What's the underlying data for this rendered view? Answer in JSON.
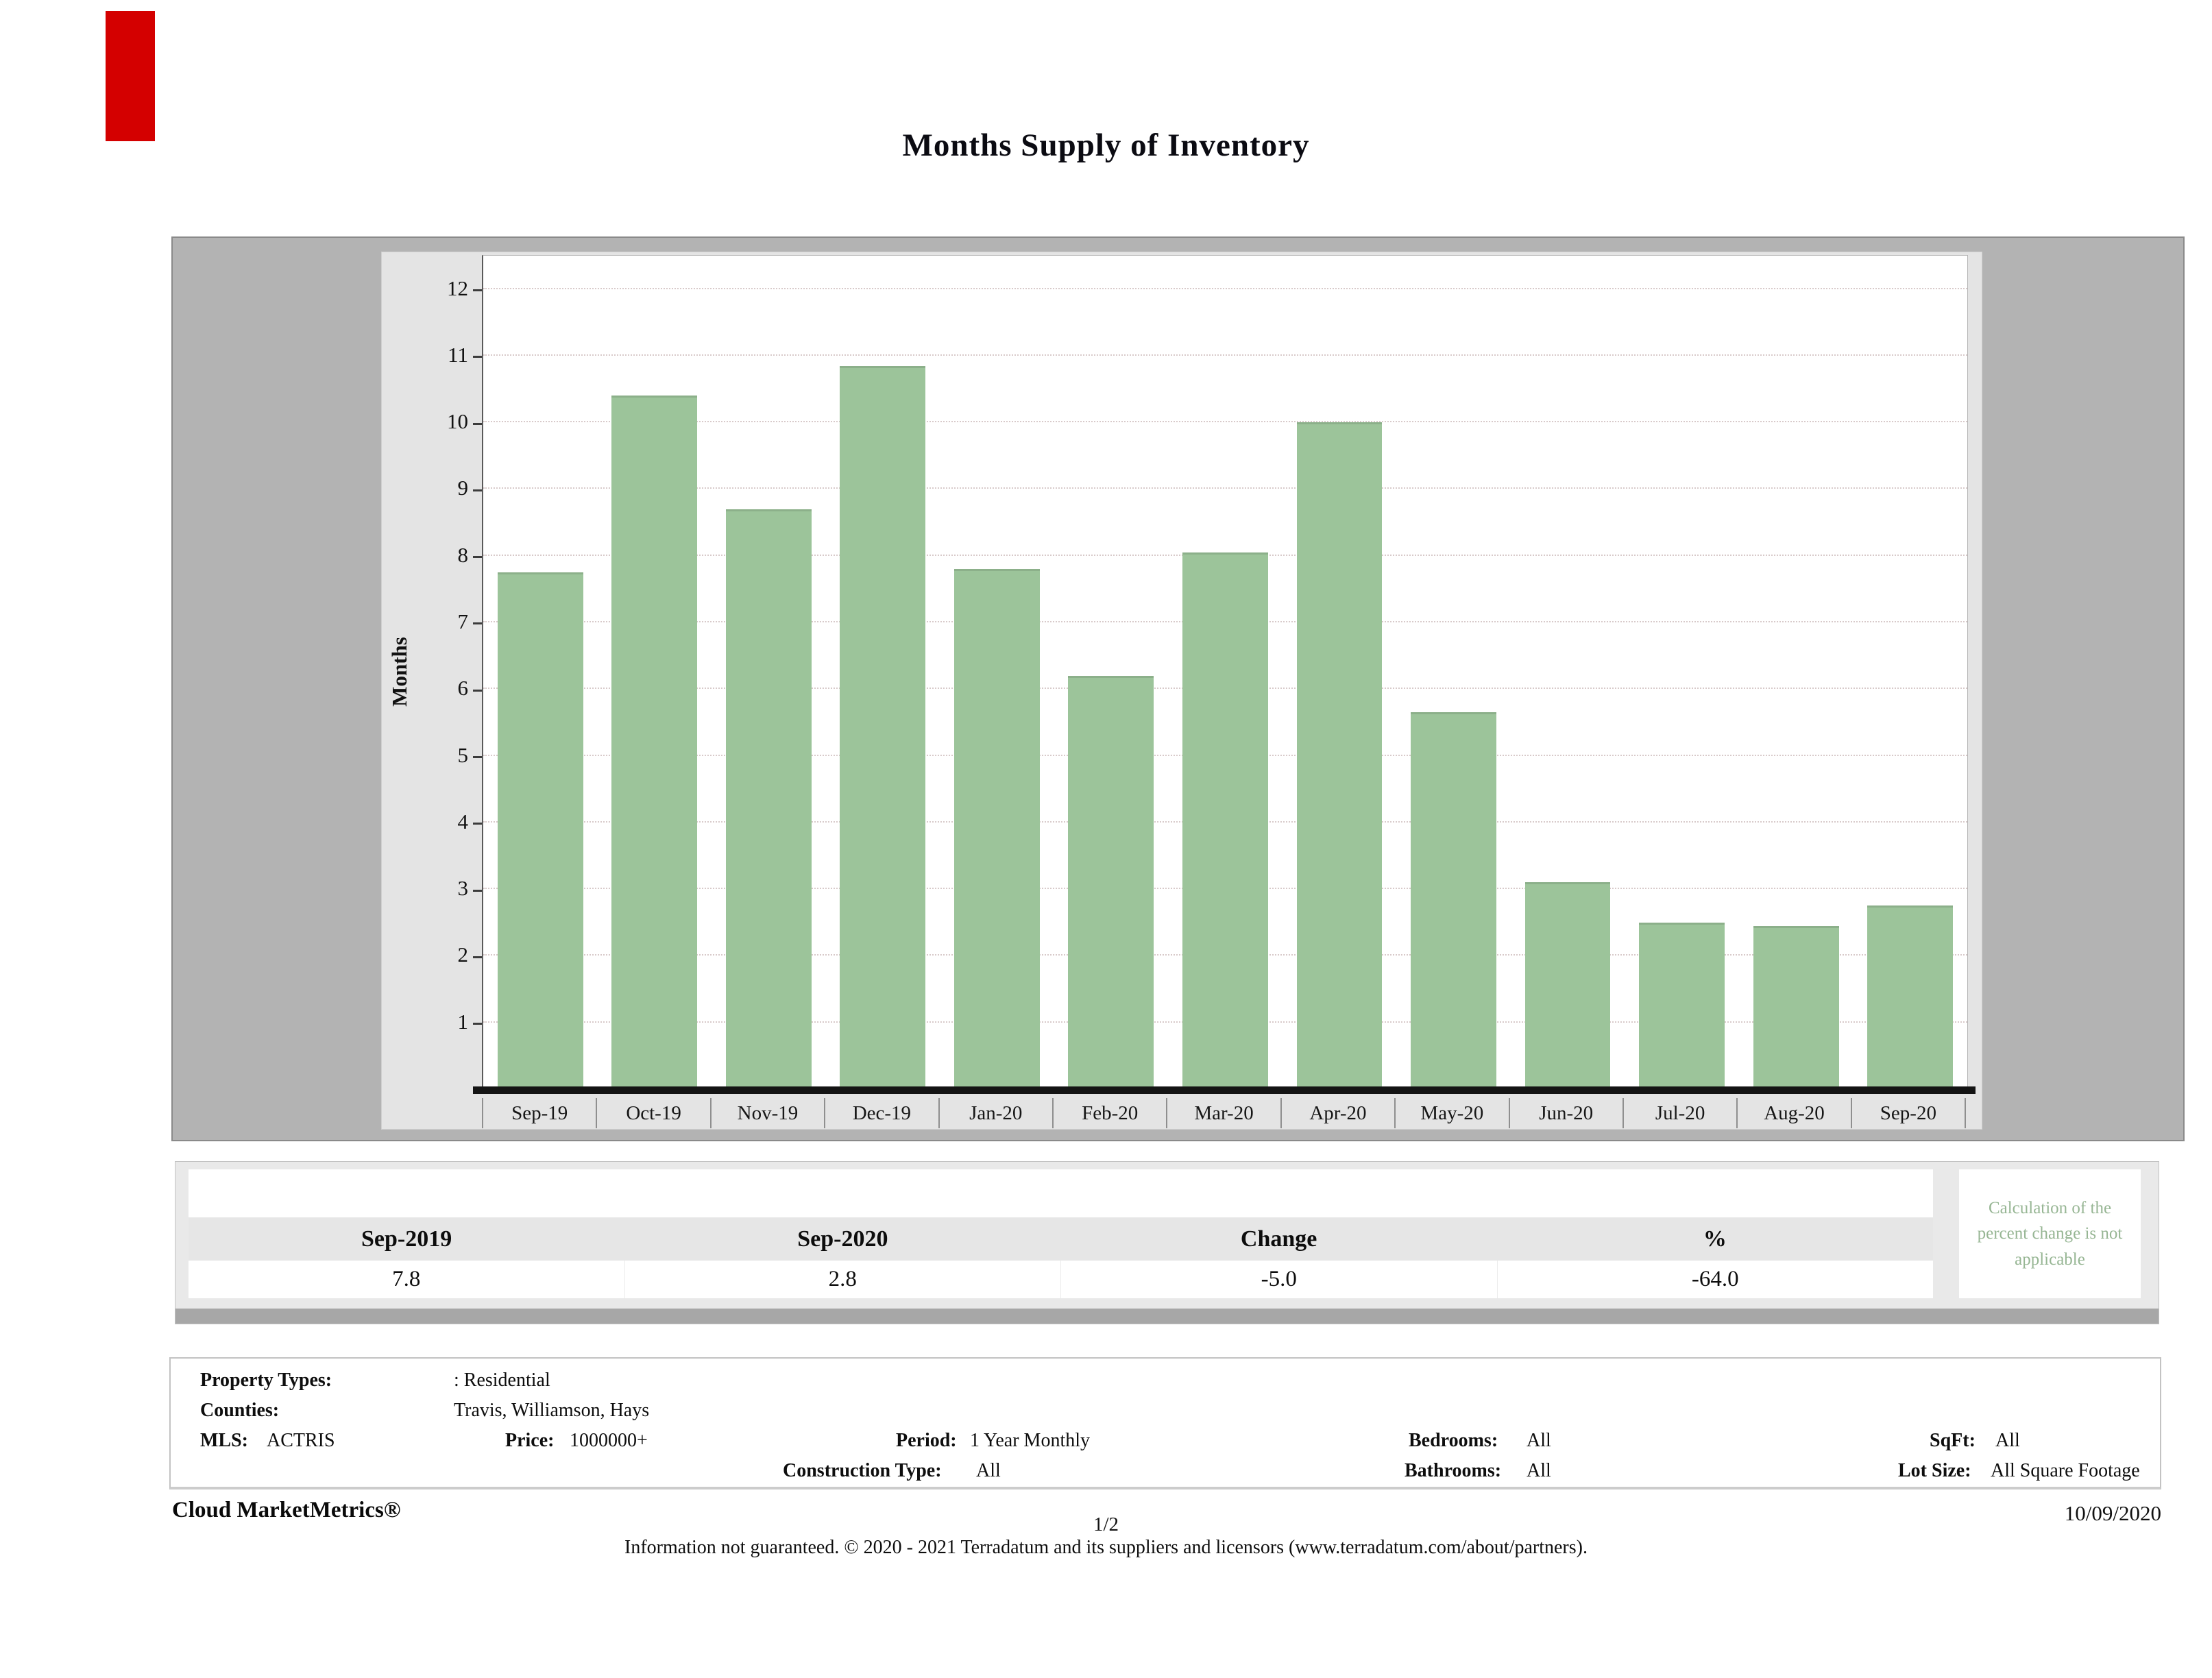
{
  "page": {
    "title": "Months Supply of Inventory",
    "brand": "Cloud MarketMetrics®",
    "page_number": "1/2",
    "date": "10/09/2020",
    "disclaimer": "Information not guaranteed. © 2020 - 2021 Terradatum and its suppliers and licensors (www.terradatum.com/about/partners)."
  },
  "chart_data": {
    "type": "bar",
    "title": "Months Supply of Inventory",
    "xlabel": "",
    "ylabel": "Months",
    "categories": [
      "Sep-19",
      "Oct-19",
      "Nov-19",
      "Dec-19",
      "Jan-20",
      "Feb-20",
      "Mar-20",
      "Apr-20",
      "May-20",
      "Jun-20",
      "Jul-20",
      "Aug-20",
      "Sep-20"
    ],
    "values": [
      7.75,
      10.4,
      8.7,
      10.85,
      7.8,
      6.2,
      8.05,
      10.0,
      5.65,
      3.1,
      2.5,
      2.45,
      2.75
    ],
    "ylim": [
      0,
      12.5
    ],
    "yticks": [
      1,
      2,
      3,
      4,
      5,
      6,
      7,
      8,
      9,
      10,
      11,
      12
    ],
    "grid": "horizontal-dotted",
    "legend": "none",
    "bar_color": "#9cc49a"
  },
  "summary_table": {
    "columns": [
      "Sep-2019",
      "Sep-2020",
      "Change",
      "%"
    ],
    "values": [
      "7.8",
      "2.8",
      "-5.0",
      "-64.0"
    ]
  },
  "note": {
    "text": "Calculation of the percent change is not applicable",
    "color": "#97b694"
  },
  "details": {
    "property_types": {
      "label": "Property Types:",
      "value": ": Residential"
    },
    "counties": {
      "label": "Counties:",
      "value": "Travis, Williamson, Hays"
    },
    "mls": {
      "label": "MLS:",
      "value": "ACTRIS"
    },
    "price": {
      "label": "Price:",
      "value": "1000000+"
    },
    "period": {
      "label": "Period:",
      "value": "1 Year Monthly"
    },
    "construction_type": {
      "label": "Construction Type:",
      "value": "All"
    },
    "bedrooms": {
      "label": "Bedrooms:",
      "value": "All"
    },
    "bathrooms": {
      "label": "Bathrooms:",
      "value": "All"
    },
    "sqft": {
      "label": "SqFt:",
      "value": "All"
    },
    "lot_size": {
      "label": "Lot Size:",
      "value": "All Square Footage"
    }
  },
  "marker": {
    "color": "#d40000"
  }
}
